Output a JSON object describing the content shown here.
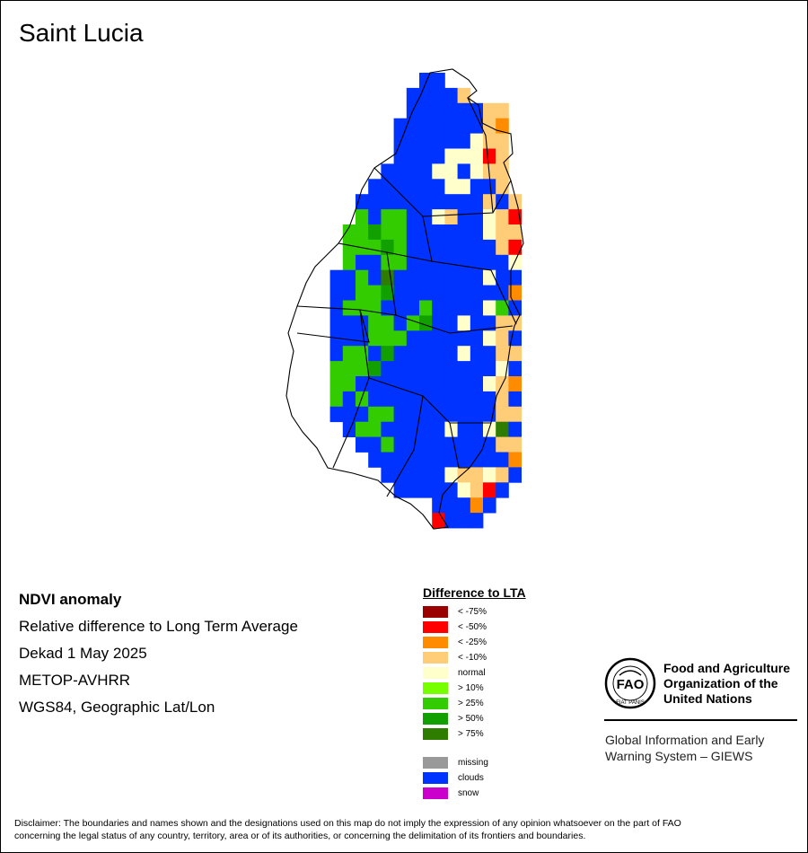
{
  "title": "Saint Lucia",
  "info": {
    "product": "NDVI anomaly",
    "description": "Relative difference to Long Term Average",
    "period": "Dekad 1 May 2025",
    "sensor": "METOP-AVHRR",
    "projection": "WGS84, Geographic Lat/Lon"
  },
  "legend": {
    "title": "Difference to LTA",
    "classes": [
      {
        "label": "< -75%",
        "color": "#9b0000"
      },
      {
        "label": "< -50%",
        "color": "#ff0000"
      },
      {
        "label": "< -25%",
        "color": "#ff8c00"
      },
      {
        "label": "< -10%",
        "color": "#ffcc77"
      },
      {
        "label": "normal",
        "color": "#ffffcc"
      },
      {
        "label": "> 10%",
        "color": "#77ff00"
      },
      {
        "label": "> 25%",
        "color": "#33cc00"
      },
      {
        "label": "> 50%",
        "color": "#11a000"
      },
      {
        "label": "> 75%",
        "color": "#2e7d00"
      }
    ],
    "extra": [
      {
        "label": "missing",
        "color": "#999999"
      },
      {
        "label": "clouds",
        "color": "#0033ff"
      },
      {
        "label": "snow",
        "color": "#cc00cc"
      }
    ]
  },
  "fao": {
    "logo_text": "FAO",
    "logo_motto": "FIAT PANIS",
    "name_line1": "Food and Agriculture",
    "name_line2": "Organization of the",
    "name_line3": "United Nations",
    "giews_line1": "Global Information and Early",
    "giews_line2": "Warning System – GIEWS"
  },
  "disclaimer_line1": "Disclaimer: The boundaries and names shown and the designations used on this map do not imply the expression of any opinion whatsoever on the part of FAO",
  "disclaimer_line2": "concerning the legal status of any country, territory, area or of its authorities, or concerning the delimitation of its frontiers and boundaries.",
  "map_grid": [
    "..........CC......",
    ".........CCCCW....",
    ".........CCCCCCWW.",
    "........CCCCCCCWO.",
    "........CCCCCCNWW.",
    "........CCCCNNNRW.",
    ".......CCCCNNCNWW.",
    "......CCCCCCNNCCW.",
    ".....CCCCCCCCCCWCW",
    ".....GCGGCCNWCCNWR",
    "....GGHGGCCCCCCNWW",
    "....GGGHGCCCCCCCWR",
    "....GCCGGCCCCCCCCN",
    "...CCGCTCCCCCCCNCC",
    "...CCGGHCCCCCCCCCO",
    "...CGGGCCCGCCCCNGC",
    "...CCCGGCGHCCNCCWW",
    "...CCCGGGCCCCCCNWC",
    "...CGGCHCCCCCNCCWW",
    "...GGGHCCCCCCCCCNC",
    "...GGCCCCCCCCCCNWO",
    "...GCGCCCCCCCCCCWC",
    "...CCCGGCCCCCCCCWW",
    "....CGGCCCCCNCCNTC",
    ".....CCGCCCCCCCCWW",
    "......CCCCCCCCCCCO",
    ".......CCCCCNWWNWC",
    "........CCCCCNWRC.",
    "...........CCCOC..",
    "...........RCCC..."
  ]
}
